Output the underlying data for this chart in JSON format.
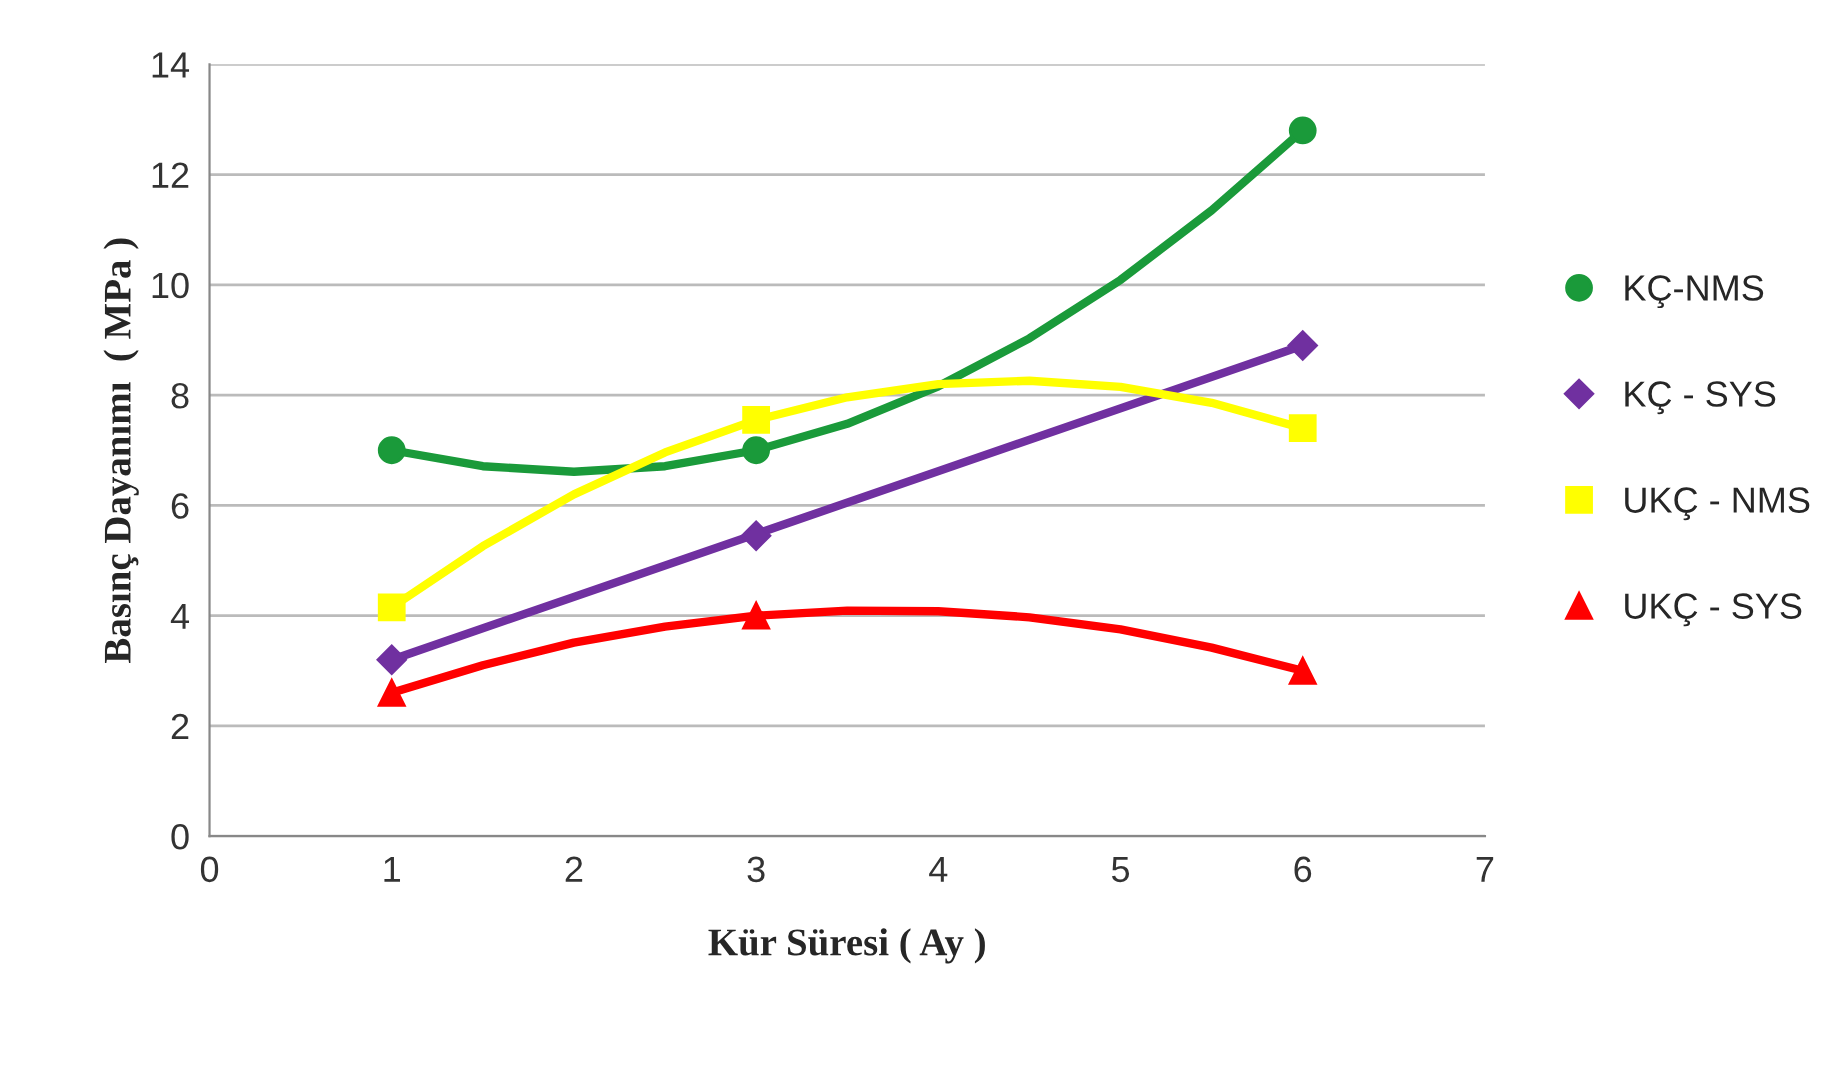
{
  "chart_data": {
    "type": "scatter",
    "xlabel": "Kür Süresi ( Ay )",
    "ylabel": "Basınç Dayanımı  ( MPa )",
    "x": [
      1,
      3,
      6
    ],
    "series": [
      {
        "name": "KÇ-NMS",
        "color": "#1a9a3a",
        "marker": "circle",
        "values": [
          7.0,
          7.0,
          12.8
        ]
      },
      {
        "name": "KÇ - SYS",
        "color": "#7030a0",
        "marker": "diamond",
        "values": [
          3.2,
          5.45,
          8.9
        ]
      },
      {
        "name": "UKÇ - NMS",
        "color": "#ffff00",
        "marker": "square",
        "values": [
          4.15,
          7.55,
          7.4
        ]
      },
      {
        "name": "UKÇ - SYS",
        "color": "#ff0000",
        "marker": "triangle",
        "values": [
          2.6,
          4.0,
          3.0
        ]
      },
      {
        "type": "line",
        "color": "#1a9a3a",
        "x": [
          1,
          1.5,
          2,
          2.5,
          3,
          3.5,
          4,
          4.5,
          5,
          5.5,
          6
        ],
        "values": [
          7.0,
          6.71,
          6.61,
          6.71,
          7.0,
          7.48,
          8.16,
          9.03,
          10.09,
          11.35,
          12.8
        ]
      },
      {
        "type": "line",
        "color": "#7030a0",
        "x": [
          1,
          6
        ],
        "values": [
          3.2,
          8.9
        ]
      },
      {
        "type": "line",
        "color": "#ffff00",
        "x": [
          1,
          1.5,
          2,
          2.5,
          3,
          3.5,
          4,
          4.5,
          5,
          5.5,
          6
        ],
        "values": [
          4.15,
          5.26,
          6.2,
          6.96,
          7.55,
          7.96,
          8.2,
          8.26,
          8.15,
          7.86,
          7.4
        ]
      },
      {
        "type": "line",
        "color": "#ff0000",
        "x": [
          1,
          1.5,
          2,
          2.5,
          3,
          3.5,
          4,
          4.5,
          5,
          5.5,
          6
        ],
        "values": [
          2.6,
          3.1,
          3.51,
          3.8,
          4.0,
          4.09,
          4.08,
          3.97,
          3.75,
          3.42,
          3.0
        ]
      }
    ],
    "xlim": [
      0,
      7
    ],
    "xticks": [
      0,
      1,
      2,
      3,
      4,
      5,
      6,
      7
    ],
    "ylim": [
      0,
      14
    ],
    "yticks": [
      0,
      2,
      4,
      6,
      8,
      10,
      12,
      14
    ],
    "grid": "y",
    "legend": "right"
  }
}
